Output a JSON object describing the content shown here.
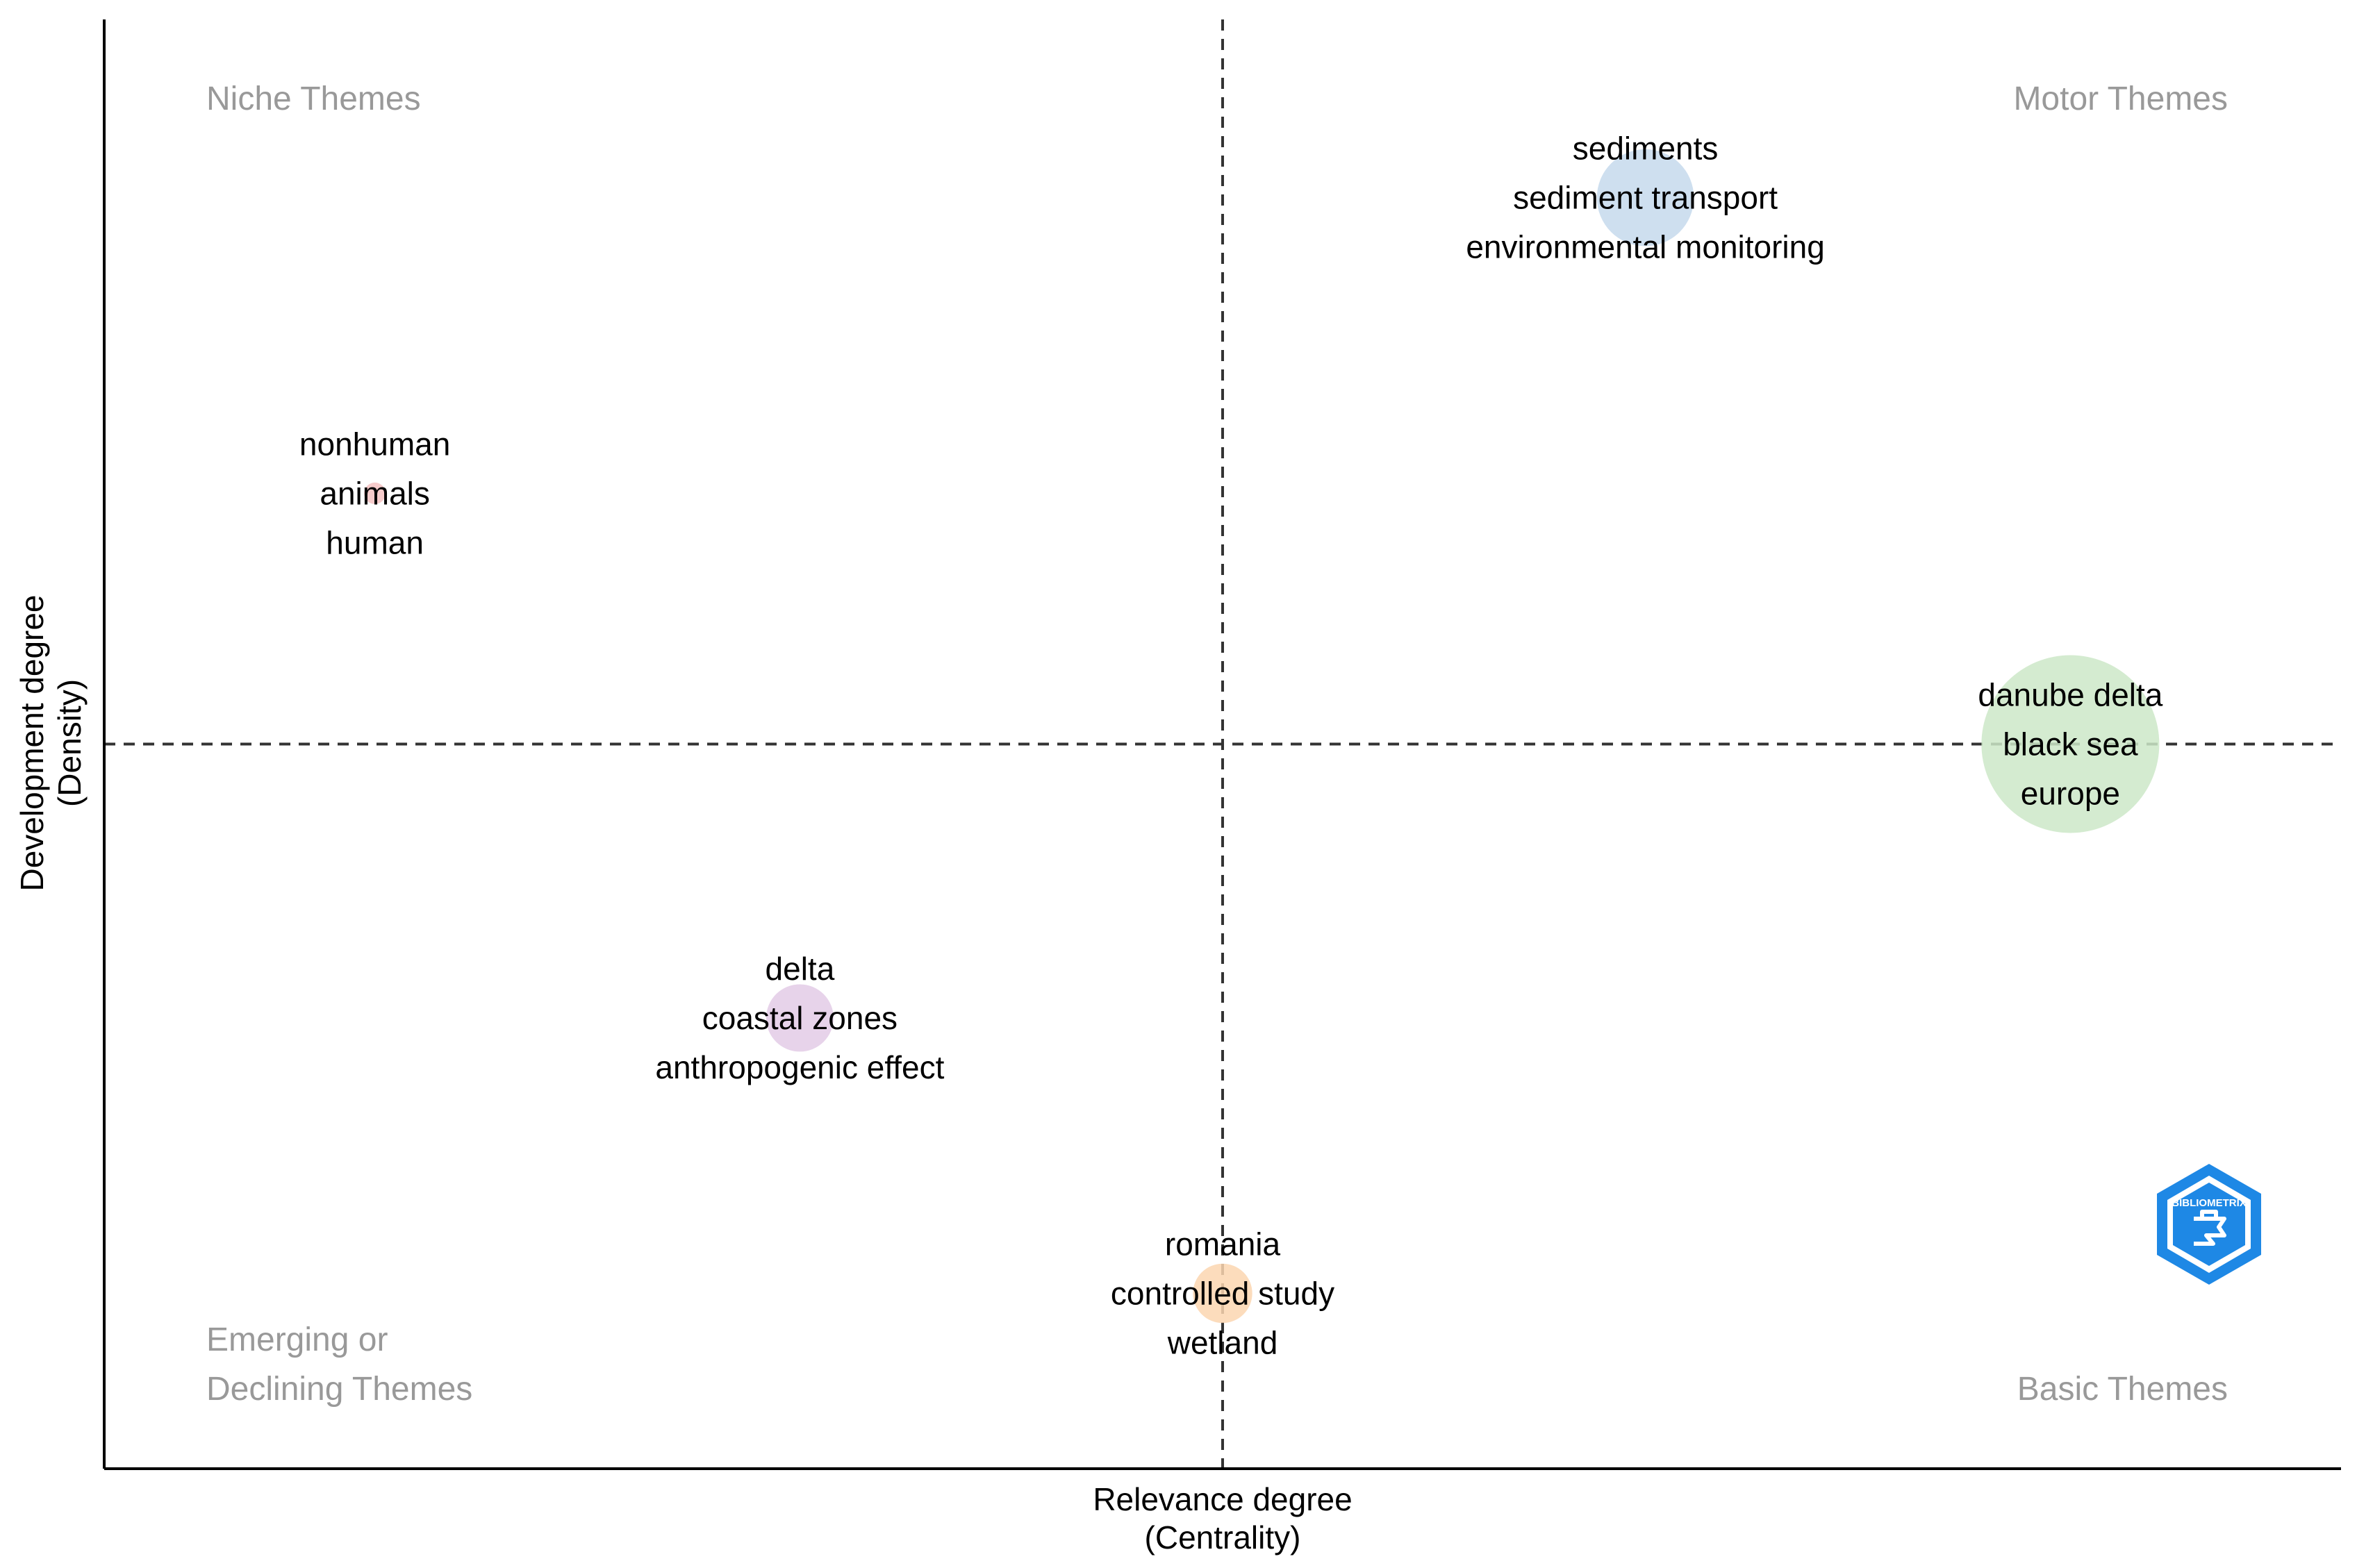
{
  "chart_data": {
    "type": "scatter",
    "title": "",
    "xlabel": [
      "Relevance degree",
      "(Centrality)"
    ],
    "ylabel": [
      "Development degree",
      "(Density)"
    ],
    "xlim": [
      0,
      1
    ],
    "ylim": [
      0,
      1
    ],
    "x_divider": 0.5,
    "y_divider": 0.5,
    "quadrant_labels": {
      "top_left": [
        "Niche Themes"
      ],
      "top_right": [
        "Motor Themes"
      ],
      "bottom_left": [
        "Emerging or",
        "Declining Themes"
      ],
      "bottom_right": [
        "Basic Themes"
      ]
    },
    "clusters": [
      {
        "labels": [
          "sediments",
          "sediment transport",
          "environmental monitoring"
        ],
        "x": 0.689,
        "y": 0.877,
        "size": 0.36,
        "color": "#c6d9ec"
      },
      {
        "labels": [
          "nonhuman",
          "animals",
          "human"
        ],
        "x": 0.121,
        "y": 0.673,
        "size": 0.08,
        "color": "#f4c2c2"
      },
      {
        "labels": [
          "danube delta",
          "black sea",
          "europe"
        ],
        "x": 0.879,
        "y": 0.5,
        "size": 0.66,
        "color": "#cde8c8"
      },
      {
        "labels": [
          "delta",
          "coastal zones",
          "anthropogenic effect"
        ],
        "x": 0.311,
        "y": 0.311,
        "size": 0.25,
        "color": "#e3cbe6"
      },
      {
        "labels": [
          "romania",
          "controlled study",
          "wetland"
        ],
        "x": 0.5,
        "y": 0.121,
        "size": 0.22,
        "color": "#fbd6b0"
      }
    ]
  },
  "logo": {
    "text": "BIBLIOMETRIX",
    "color": "#1e88e5"
  }
}
